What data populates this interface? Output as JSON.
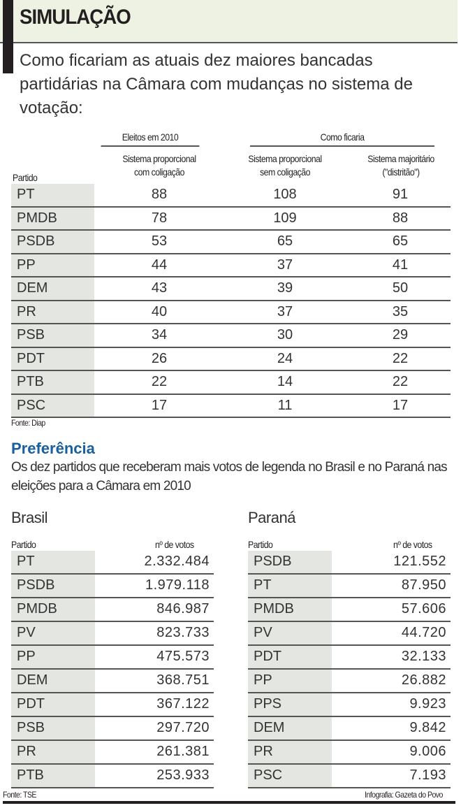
{
  "header": {
    "title": "SIMULAÇÃO",
    "subtitle": "Como ficariam as atuais dez maiores bancadas partidárias na Câmara com mudanças no sistema de votação:"
  },
  "simulation": {
    "group1": "Eleitos em 2010",
    "group2": "Como ficaria",
    "columns": [
      "Partido",
      "Sistema proporcional com coligação",
      "Sistema proporcional sem coligação",
      "Sistema majoritário (\"distritão\")"
    ],
    "col1_lines": [
      "Sistema proporcional",
      "com coligação"
    ],
    "col2_lines": [
      "Sistema proporcional",
      "sem coligação"
    ],
    "col3_lines": [
      "Sistema majoritário",
      "(\"distritão\")"
    ],
    "rows": [
      [
        "PT",
        "88",
        "108",
        "91"
      ],
      [
        "PMDB",
        "78",
        "109",
        "88"
      ],
      [
        "PSDB",
        "53",
        "65",
        "65"
      ],
      [
        "PP",
        "44",
        "37",
        "41"
      ],
      [
        "DEM",
        "43",
        "39",
        "50"
      ],
      [
        "PR",
        "40",
        "37",
        "35"
      ],
      [
        "PSB",
        "34",
        "30",
        "29"
      ],
      [
        "PDT",
        "26",
        "24",
        "22"
      ],
      [
        "PTB",
        "22",
        "14",
        "22"
      ],
      [
        "PSC",
        "17",
        "11",
        "17"
      ]
    ],
    "source": "Fonte: Diap"
  },
  "preference": {
    "title": "Preferência",
    "description": "Os dez partidos que receberam mais votos de legenda no Brasil e no Paraná nas eleições para a Câmara em 2010",
    "col_party": "Partido",
    "col_votes": "nº de votos",
    "brasil": {
      "title": "Brasil",
      "rows": [
        [
          "PT",
          "2.332.484"
        ],
        [
          "PSDB",
          "1.979.118"
        ],
        [
          "PMDB",
          "846.987"
        ],
        [
          "PV",
          "823.733"
        ],
        [
          "PP",
          "475.573"
        ],
        [
          "DEM",
          "368.751"
        ],
        [
          "PDT",
          "367.122"
        ],
        [
          "PSB",
          "297.720"
        ],
        [
          "PR",
          "261.381"
        ],
        [
          "PTB",
          "253.933"
        ]
      ]
    },
    "parana": {
      "title": "Paraná",
      "rows": [
        [
          "PSDB",
          "121.552"
        ],
        [
          "PT",
          "87.950"
        ],
        [
          "PMDB",
          "57.606"
        ],
        [
          "PV",
          "44.720"
        ],
        [
          "PDT",
          "32.133"
        ],
        [
          "PP",
          "26.882"
        ],
        [
          "PPS",
          "9.923"
        ],
        [
          "DEM",
          "9.842"
        ],
        [
          "PR",
          "9.006"
        ],
        [
          "PSC",
          "7.193"
        ]
      ]
    },
    "source": "Fonte: TSE",
    "credit": "Infografia: Gazeta do Povo"
  }
}
